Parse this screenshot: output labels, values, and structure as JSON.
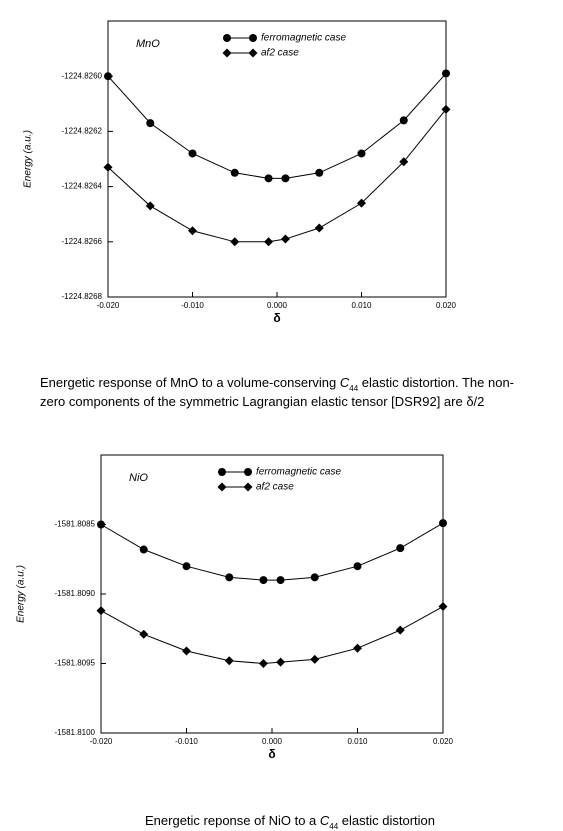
{
  "chart_data": [
    {
      "type": "line",
      "title": "MnO",
      "x_label": "δ",
      "y_label": "Energy (a.u.)",
      "x": [
        -0.02,
        -0.015,
        -0.01,
        -0.005,
        -0.001,
        0.001,
        0.005,
        0.01,
        0.015,
        0.02
      ],
      "series": [
        {
          "name": "ferromagnetic case",
          "color": "#000000",
          "marker": "circle",
          "values": [
            -1224.826,
            -1224.82617,
            -1224.82628,
            -1224.82635,
            -1224.82637,
            -1224.82637,
            -1224.82635,
            -1224.82628,
            -1224.82616,
            -1224.82599
          ]
        },
        {
          "name": "af2 case",
          "color": "#000000",
          "marker": "diamond",
          "values": [
            -1224.82633,
            -1224.82647,
            -1224.82656,
            -1224.8266,
            -1224.8266,
            -1224.82659,
            -1224.82655,
            -1224.82646,
            -1224.82631,
            -1224.82612
          ]
        }
      ],
      "xlim": [
        -0.02,
        0.02
      ],
      "xticks": [
        {
          "value": -0.02,
          "label": "-0.020"
        },
        {
          "value": -0.01,
          "label": "-0.010"
        },
        {
          "value": 0,
          "label": "0.000"
        },
        {
          "value": 0.01,
          "label": "0.010"
        },
        {
          "value": 0.02,
          "label": "0.020"
        }
      ],
      "ylim": [
        -1224.8268,
        -1224.8258
      ],
      "yticks": [
        {
          "value": -1224.8268,
          "label": "-1224.8268"
        },
        {
          "value": -1224.8266,
          "label": "-1224.8266"
        },
        -1224.8264,
        -1224.8262,
        {
          "value": -1224.826,
          "label": "-1224.8260"
        }
      ],
      "legend": "upper center",
      "caption": [
        "Energetic response of MnO to a volume-conserving ",
        "C",
        "44",
        " elastic distortion. The non-",
        "zero components of the symmetric Lagrangian elastic tensor [DSR92] are δ/2"
      ]
    },
    {
      "type": "line",
      "title": "NiO",
      "x_label": "δ",
      "y_label": "Energy (a.u.)",
      "x": [
        -0.02,
        -0.015,
        -0.01,
        -0.005,
        -0.001,
        0.001,
        0.005,
        0.01,
        0.015,
        0.02
      ],
      "series": [
        {
          "name": "ferromagnetic case",
          "color": "#000000",
          "marker": "circle",
          "values": [
            -1581.8085,
            -1581.80868,
            -1581.8088,
            -1581.80888,
            -1581.8089,
            -1581.8089,
            -1581.80888,
            -1581.8088,
            -1581.80867,
            -1581.80849
          ]
        },
        {
          "name": "af2 case",
          "color": "#000000",
          "marker": "diamond",
          "values": [
            -1581.80912,
            -1581.80929,
            -1581.80941,
            -1581.80948,
            -1581.8095,
            -1581.80949,
            -1581.80947,
            -1581.80939,
            -1581.80926,
            -1581.80909
          ]
        }
      ],
      "xlim": [
        -0.02,
        0.02
      ],
      "xticks": [
        {
          "value": -0.02,
          "label": "-0.020"
        },
        {
          "value": -0.01,
          "label": "-0.010"
        },
        {
          "value": 0,
          "label": "0.000"
        },
        {
          "value": 0.01,
          "label": "0.010"
        },
        {
          "value": 0.02,
          "label": "0.020"
        }
      ],
      "ylim": [
        -1581.81,
        -1581.808
      ],
      "yticks": [
        {
          "value": -1581.81,
          "label": "-1581.8100"
        },
        -1581.8095,
        {
          "value": -1581.809,
          "label": "-1581.8090"
        },
        -1581.8085
      ],
      "legend": "upper center",
      "caption": [
        "Energetic reponse of NiO to a ",
        "C",
        "44",
        " elastic distortion"
      ]
    }
  ]
}
